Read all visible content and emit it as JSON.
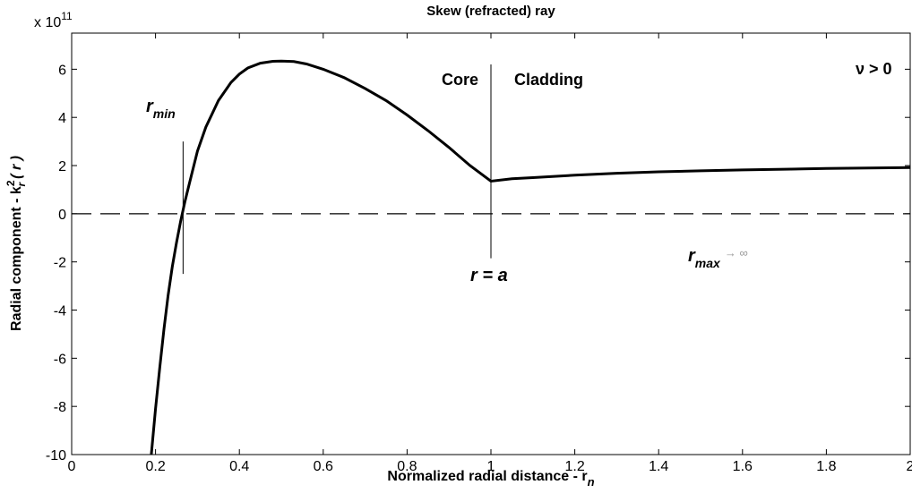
{
  "chart_data": {
    "type": "line",
    "title": "Skew (refracted) ray",
    "xlabel": "Normalized radial distance - r",
    "xlabel_subscript": "n",
    "ylabel": "Radial component - k",
    "ylabel_sup": "2",
    "ylabel_sub": "r",
    "ylabel_suffix": "( r )",
    "y_exponent_label": "x 10",
    "y_exponent_power": "11",
    "xlim": [
      0,
      2
    ],
    "ylim": [
      -10,
      7.5
    ],
    "x_ticks": [
      0,
      0.2,
      0.4,
      0.6,
      0.8,
      1,
      1.2,
      1.4,
      1.6,
      1.8,
      2
    ],
    "x_tick_labels": [
      "0",
      "0.2",
      "0.4",
      "0.6",
      "0.8",
      "1",
      "1.2",
      "1.4",
      "1.6",
      "1.8",
      "2"
    ],
    "y_ticks": [
      -10,
      -8,
      -6,
      -4,
      -2,
      0,
      2,
      4,
      6
    ],
    "y_tick_labels": [
      "-10",
      "-8",
      "-6",
      "-4",
      "-2",
      "0",
      "2",
      "4",
      "6"
    ],
    "grid": false,
    "series": [
      {
        "x": [
          0.19,
          0.2,
          0.21,
          0.22,
          0.23,
          0.24,
          0.25,
          0.26,
          0.27,
          0.28,
          0.3,
          0.32,
          0.35,
          0.38,
          0.4,
          0.42,
          0.45,
          0.48,
          0.5,
          0.53,
          0.56,
          0.6,
          0.65,
          0.7,
          0.75,
          0.8,
          0.85,
          0.9,
          0.95,
          1.0,
          1.05,
          1.1,
          1.2,
          1.3,
          1.4,
          1.5,
          1.6,
          1.7,
          1.8,
          1.9,
          2.0
        ],
        "y": [
          -10,
          -8.1,
          -6.4,
          -4.8,
          -3.4,
          -2.2,
          -1.2,
          -0.3,
          0.5,
          1.2,
          2.6,
          3.6,
          4.7,
          5.45,
          5.8,
          6.05,
          6.25,
          6.33,
          6.34,
          6.32,
          6.22,
          6.0,
          5.65,
          5.2,
          4.7,
          4.1,
          3.45,
          2.75,
          2.0,
          1.35,
          1.45,
          1.5,
          1.6,
          1.68,
          1.74,
          1.78,
          1.82,
          1.85,
          1.88,
          1.9,
          1.92
        ]
      }
    ],
    "annotations": {
      "rmin": "r",
      "rmin_sub": "min",
      "core": "Core",
      "cladding": "Cladding",
      "r_eq_a": "r = a",
      "rmax": "r",
      "rmax_sub": "max",
      "rmax_suffix": "→ ∞",
      "nu_label": "ν > 0"
    },
    "reference_x": [
      0.27,
      1
    ],
    "zero_line_style": "dashed"
  }
}
